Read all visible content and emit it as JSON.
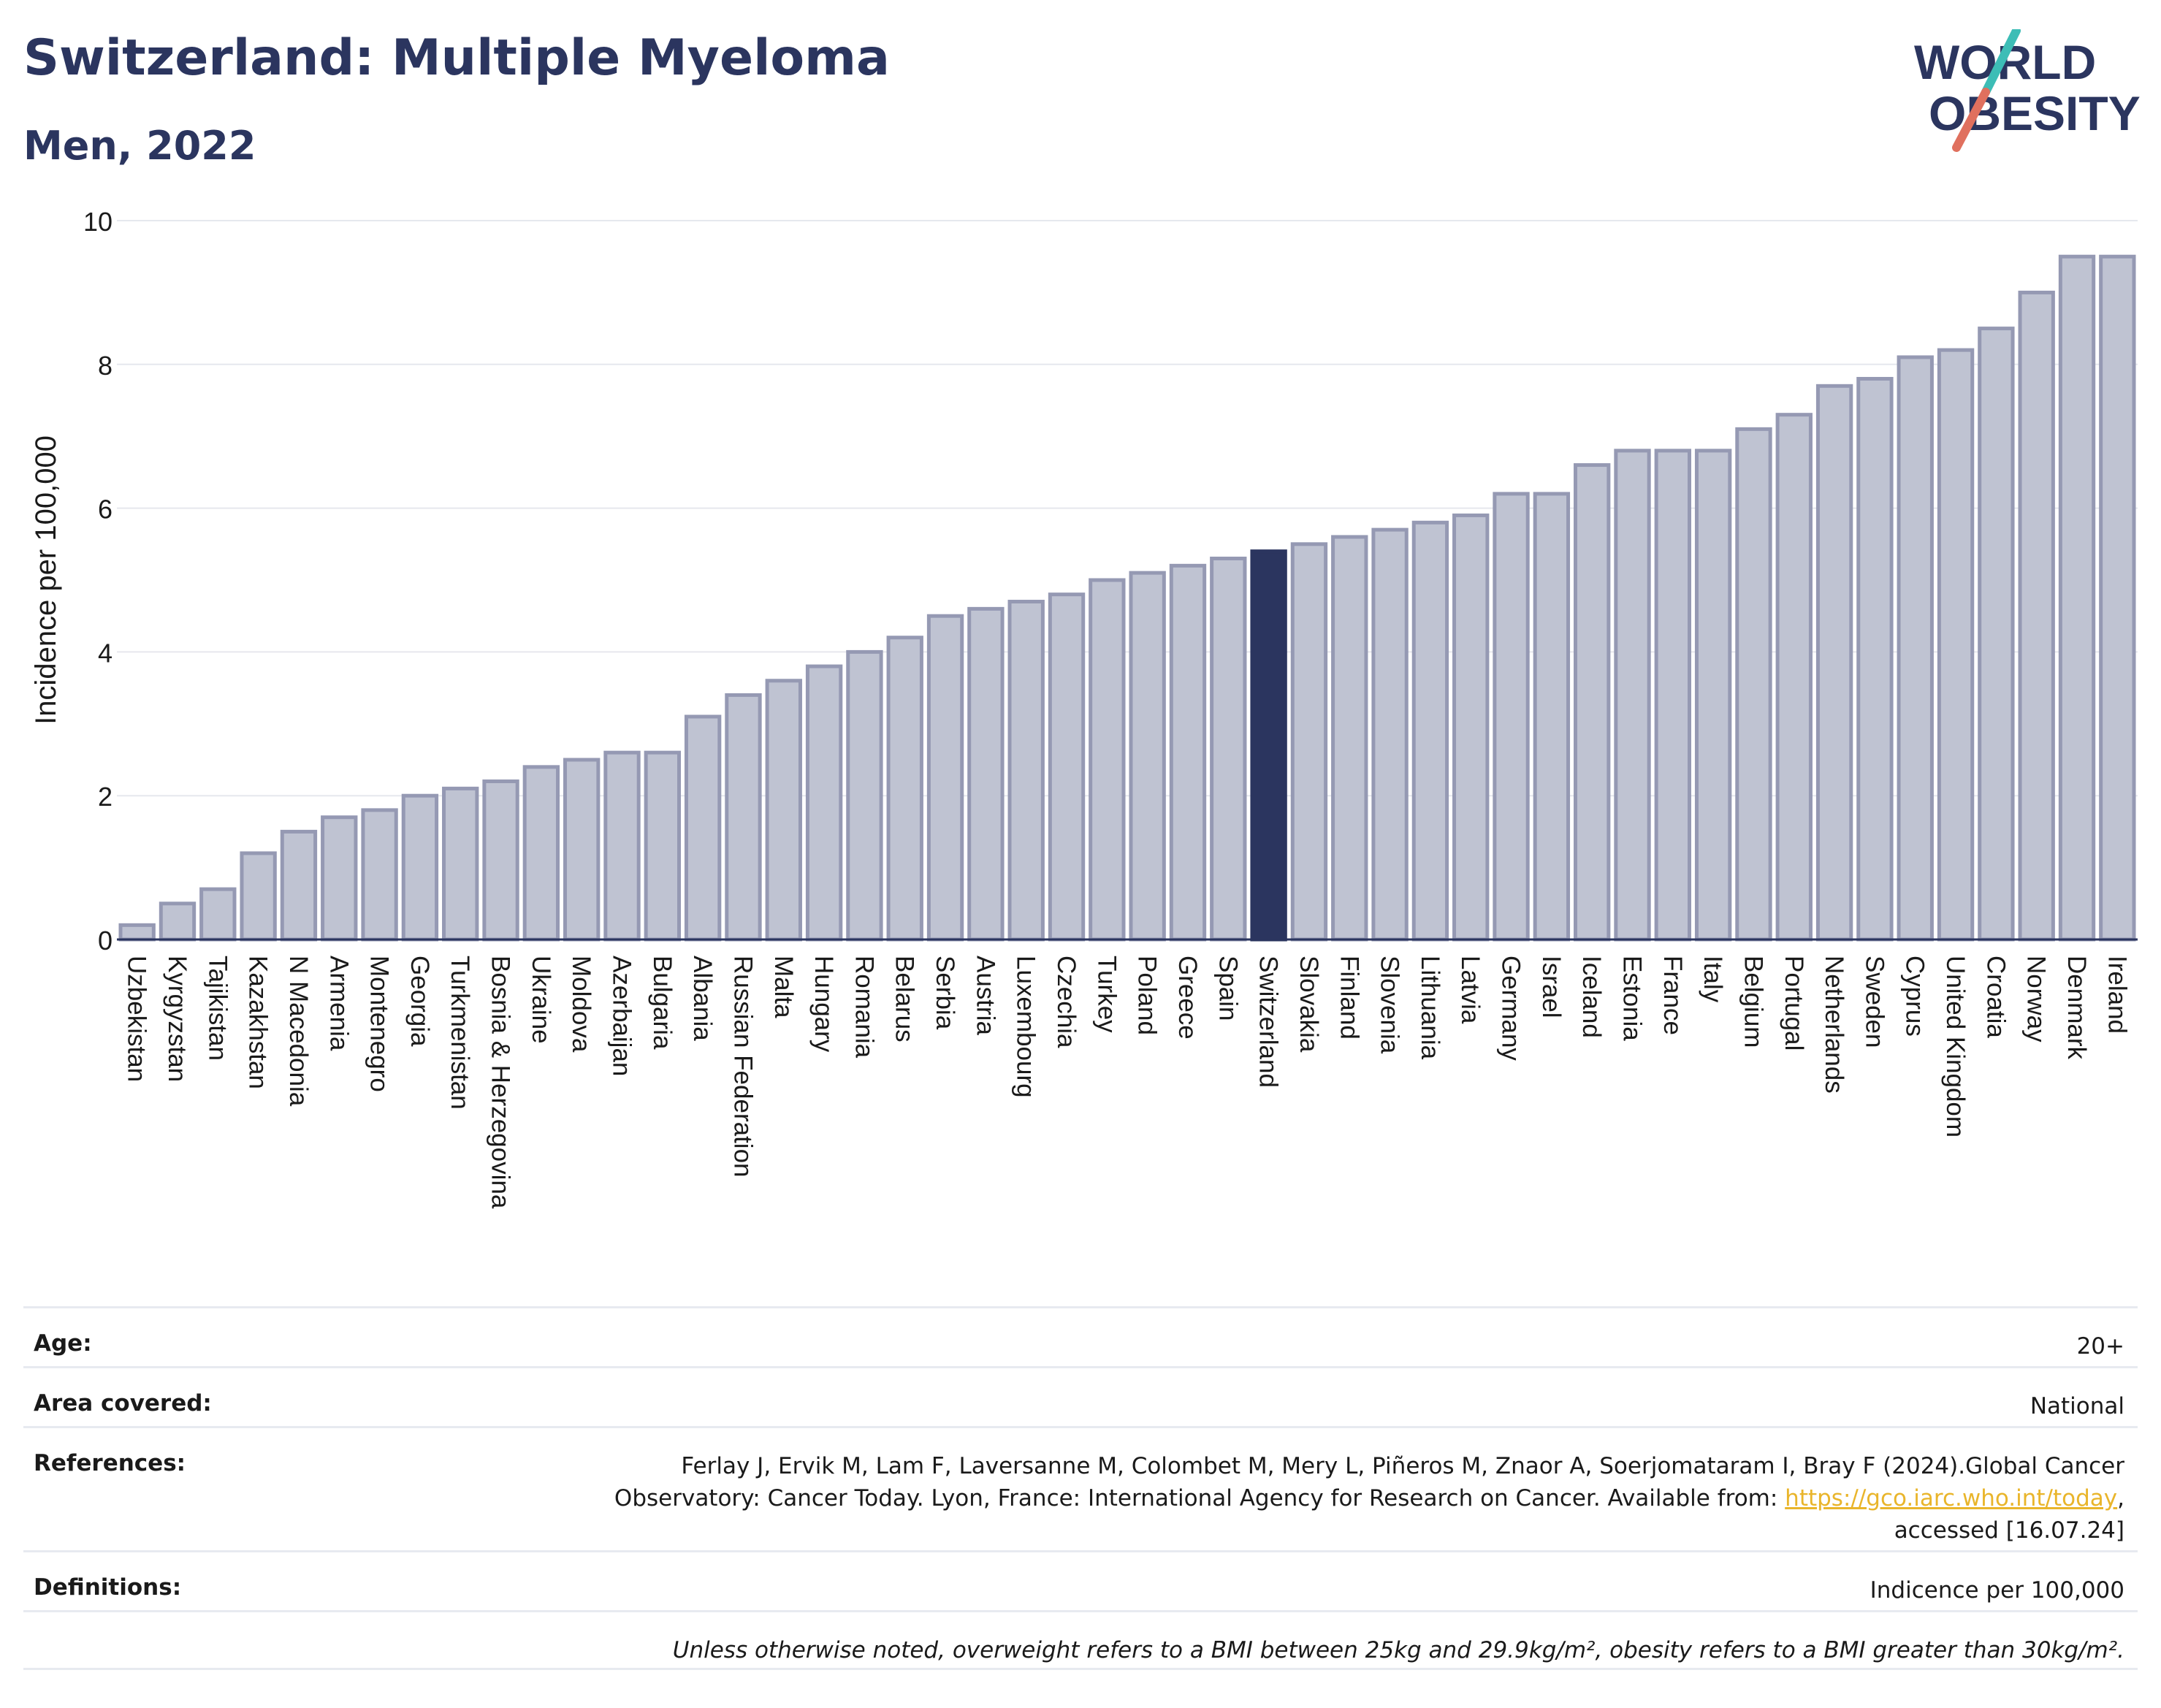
{
  "header": {
    "title": "Switzerland: Multiple Myeloma",
    "subtitle": "Men, 2022",
    "logo_line1": "WORLD",
    "logo_line2": "OBESITY"
  },
  "colors": {
    "highlight": "#2b355f",
    "bar": "#bfc3d2",
    "bar_edge": "#9599b3",
    "logo_slash_teal": "#3dbdb6",
    "logo_slash_coral": "#e0705e"
  },
  "chart_data": {
    "type": "bar",
    "title": "Switzerland: Multiple Myeloma",
    "subtitle": "Men, 2022",
    "ylabel": "Incidence per 100,000",
    "xlabel": "",
    "ylim": [
      0,
      10
    ],
    "yticks": [
      0,
      2,
      4,
      6,
      8,
      10
    ],
    "grid": true,
    "highlight": "Switzerland",
    "categories": [
      "Uzbekistan",
      "Kyrgyzstan",
      "Tajikistan",
      "Kazakhstan",
      "N Macedonia",
      "Armenia",
      "Montenegro",
      "Georgia",
      "Turkmenistan",
      "Bosnia & Herzegovina",
      "Ukraine",
      "Moldova",
      "Azerbaijan",
      "Bulgaria",
      "Albania",
      "Russian Federation",
      "Malta",
      "Hungary",
      "Romania",
      "Belarus",
      "Serbia",
      "Austria",
      "Luxembourg",
      "Czechia",
      "Turkey",
      "Poland",
      "Greece",
      "Spain",
      "Switzerland",
      "Slovakia",
      "Finland",
      "Slovenia",
      "Lithuania",
      "Latvia",
      "Germany",
      "Israel",
      "Iceland",
      "Estonia",
      "France",
      "Italy",
      "Belgium",
      "Portugal",
      "Netherlands",
      "Sweden",
      "Cyprus",
      "United Kingdom",
      "Croatia",
      "Norway",
      "Denmark",
      "Ireland"
    ],
    "values": [
      0.2,
      0.5,
      0.7,
      1.2,
      1.5,
      1.7,
      1.8,
      2.0,
      2.1,
      2.2,
      2.4,
      2.5,
      2.6,
      2.6,
      3.1,
      3.4,
      3.6,
      3.8,
      4.0,
      4.2,
      4.5,
      4.6,
      4.7,
      4.8,
      5.0,
      5.1,
      5.2,
      5.3,
      5.4,
      5.5,
      5.6,
      5.7,
      5.8,
      5.9,
      6.2,
      6.2,
      6.6,
      6.8,
      6.8,
      6.8,
      7.1,
      7.3,
      7.7,
      7.8,
      8.1,
      8.2,
      8.5,
      9.0,
      9.5,
      9.5
    ]
  },
  "meta": {
    "age_label": "Age:",
    "age_value": "20+",
    "area_label": "Area covered:",
    "area_value": "National",
    "references_label": "References:",
    "references_line1": "Ferlay J, Ervik M, Lam F, Laversanne M, Colombet M, Mery L, Piñeros M, Znaor A, Soerjomataram I, Bray F (2024).Global Cancer",
    "references_line2": "Observatory: Cancer Today. Lyon, France: International Agency for Research on Cancer. Available from:",
    "references_link": "https://gco.iarc.who.int/today",
    "references_line3": "accessed [16.07.24]",
    "definitions_label": "Definitions:",
    "definitions_value": "Indicence per 100,000",
    "note": "Unless otherwise noted, overweight refers to a BMI between 25kg and 29.9kg/m², obesity refers to a BMI greater than 30kg/m²."
  }
}
